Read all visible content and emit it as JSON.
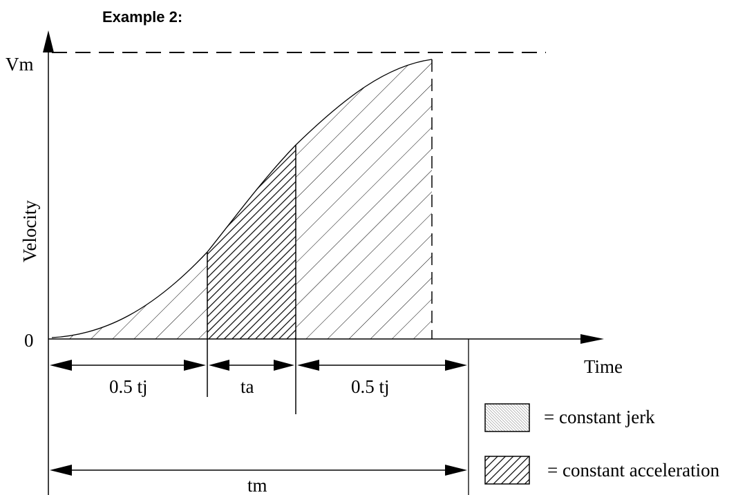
{
  "title": "Example 2:",
  "axes": {
    "y_label": "Velocity",
    "x_label": "Time",
    "y_max_label": "Vm",
    "origin_label": "0"
  },
  "intervals": {
    "first": "0.5 tj",
    "middle": "ta",
    "last": "0.5 tj",
    "total": "tm"
  },
  "legend": {
    "jerk": "= constant jerk",
    "acceleration": "= constant acceleration"
  }
}
